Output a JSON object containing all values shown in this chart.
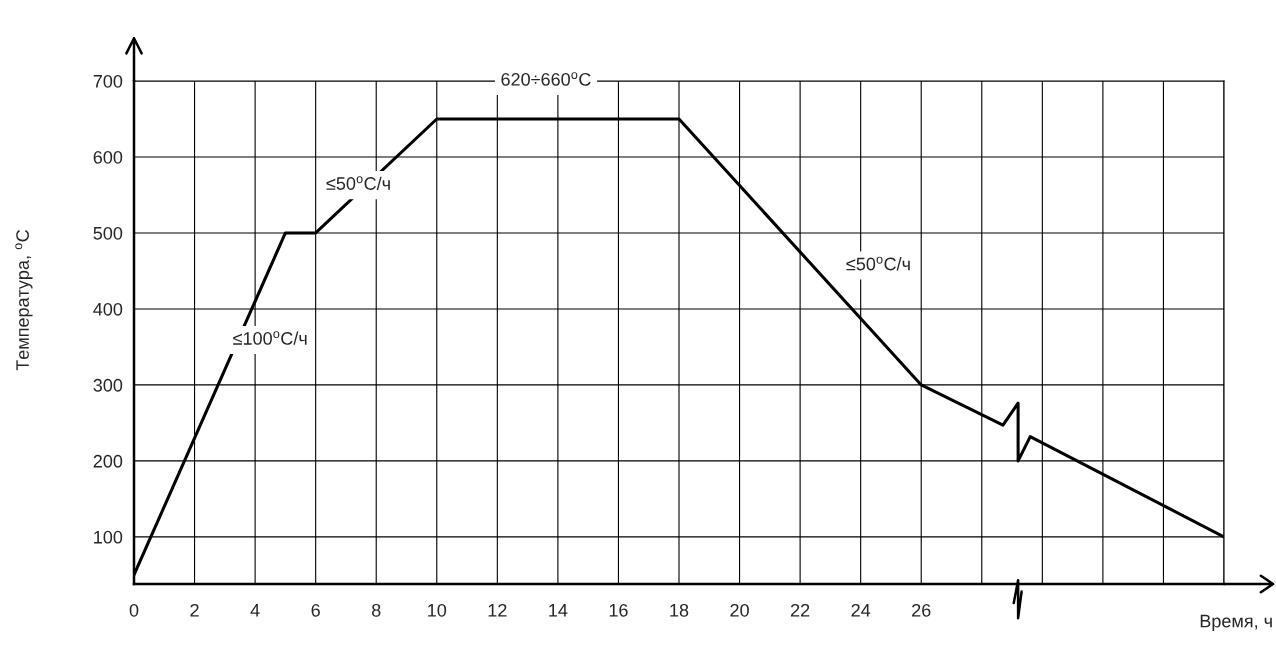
{
  "chart_data": {
    "type": "line",
    "xlabel": "Время, ч",
    "ylabel": "Температура, $^{o}$C",
    "x": [
      0,
      5,
      6,
      10,
      18,
      26,
      28.7,
      29.2,
      29.2,
      29.6,
      36
    ],
    "series": [
      {
        "color": "#000000",
        "values": [
          50,
          500,
          500,
          650,
          650,
          300,
          247,
          276,
          200,
          232,
          100
        ]
      }
    ],
    "xlim": [
      0,
      36
    ],
    "ylim": [
      38,
      700
    ],
    "xticks": [
      0,
      2,
      4,
      6,
      8,
      10,
      12,
      14,
      16,
      18,
      20,
      22,
      24,
      26,
      {
        "value": 28,
        "label": null
      },
      {
        "value": 30,
        "label": null
      },
      {
        "value": 32,
        "label": null
      },
      {
        "value": 34,
        "label": null
      },
      {
        "value": 36,
        "label": null
      }
    ],
    "yticks": [
      {
        "value": 38,
        "label": null
      },
      100,
      200,
      300,
      400,
      500,
      600,
      700
    ],
    "grid": true,
    "legend": false,
    "marker": "none",
    "line_style": "solid",
    "annotations": [
      "620÷660$^{o}$C",
      "≤50$^{o}$C/ч",
      "≤100$^{o}$C/ч",
      "≤50$^{o}$C/ч"
    ]
  }
}
